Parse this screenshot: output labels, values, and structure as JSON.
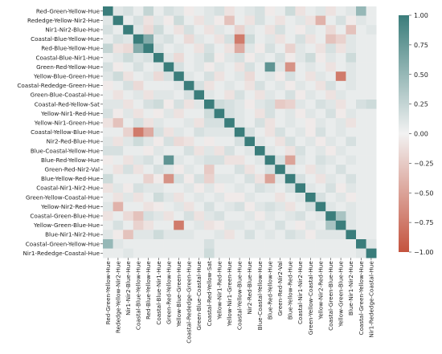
{
  "chart_data": {
    "type": "heatmap",
    "title": "",
    "xlabel": "",
    "ylabel": "",
    "labels": [
      "Red-Green-Yellow-Hue",
      "Rededge-Yellow-Nir2-Hue",
      "Nir1-Nir2-Blue-Hue",
      "Coastal-Blue-Yellow-Hue",
      "Red-Blue-Yellow-Hue",
      "Coastal-Blue-Nir1-Hue",
      "Green-Red-Yellow-Hue",
      "Yellow-Blue-Green-Hue",
      "Coastal-Rededge-Green-Hue",
      "Green-Blue-Coastal-Hue",
      "Coastal-Red-Yellow-Sat",
      "Yellow-Nir1-Red-Hue",
      "Yellow-Nir1-Green-Hue",
      "Coastal-Yellow-Blue-Hue",
      "Nir2-Red-Blue-Hue",
      "Blue-Coastal-Yellow-Hue",
      "Blue-Red-Yellow-Hue",
      "Green-Red-Nir2-Val",
      "Blue-Yellow-Red-Hue",
      "Coastal-Nir1-Nir2-Hue",
      "Green-Yellow-Coastal-Hue",
      "Yellow-Nir2-Red-Hue",
      "Coastal-Green-Blue-Hue",
      "Yellow-Green-Blue-Hue",
      "Blue-Nir1-Nir2-Hue",
      "Coastal-Green-Yellow-Hue",
      "Nir1-Rededge-Coastal-Hue"
    ],
    "values": [
      [
        1.0,
        0.1,
        0.15,
        0.05,
        0.25,
        0.05,
        0.15,
        0.1,
        -0.05,
        0.05,
        0.1,
        0.15,
        -0.1,
        0.05,
        0.1,
        0.15,
        -0.05,
        0.05,
        0.2,
        -0.1,
        0.05,
        0.1,
        -0.1,
        0.05,
        0.1,
        0.5,
        0.05
      ],
      [
        0.1,
        1.0,
        0.05,
        0.15,
        -0.1,
        0.1,
        -0.05,
        0.2,
        0.05,
        -0.1,
        0.1,
        -0.05,
        -0.3,
        0.05,
        -0.1,
        0.15,
        0.05,
        -0.1,
        0.05,
        0.1,
        -0.1,
        -0.4,
        0.05,
        0.15,
        -0.05,
        0.1,
        0.05
      ],
      [
        0.15,
        0.05,
        1.0,
        0.1,
        -0.15,
        0.2,
        0.05,
        -0.1,
        0.15,
        0.05,
        -0.1,
        0.1,
        0.05,
        -0.2,
        0.1,
        0.05,
        -0.1,
        0.15,
        0.05,
        -0.05,
        0.1,
        0.05,
        -0.15,
        0.05,
        -0.3,
        0.05,
        0.1
      ],
      [
        0.05,
        0.15,
        0.1,
        1.0,
        0.6,
        0.1,
        0.15,
        0.05,
        -0.15,
        0.1,
        0.05,
        -0.1,
        0.15,
        -0.75,
        0.2,
        0.05,
        0.1,
        -0.1,
        0.05,
        0.15,
        -0.1,
        0.05,
        -0.3,
        -0.2,
        0.1,
        0.05,
        0.05
      ],
      [
        0.25,
        -0.1,
        -0.15,
        0.6,
        1.0,
        0.15,
        0.05,
        0.1,
        0.05,
        -0.1,
        0.15,
        0.05,
        -0.1,
        -0.45,
        0.1,
        -0.05,
        0.15,
        0.05,
        -0.2,
        0.1,
        0.05,
        -0.1,
        0.15,
        -0.1,
        0.1,
        0.05,
        0.05
      ],
      [
        0.05,
        0.1,
        0.2,
        0.1,
        0.15,
        1.0,
        0.1,
        -0.15,
        0.05,
        0.1,
        0.2,
        -0.05,
        0.1,
        0.15,
        -0.05,
        0.1,
        0.05,
        0.15,
        -0.05,
        0.1,
        0.2,
        -0.05,
        0.1,
        0.05,
        0.2,
        0.05,
        0.05
      ],
      [
        0.15,
        -0.05,
        0.05,
        0.15,
        0.05,
        0.1,
        1.0,
        0.15,
        0.05,
        0.1,
        -0.05,
        0.1,
        0.05,
        -0.1,
        0.15,
        0.05,
        0.8,
        0.1,
        -0.6,
        0.05,
        0.1,
        0.05,
        -0.1,
        0.05,
        0.1,
        0.05,
        0.05
      ],
      [
        0.1,
        0.2,
        -0.1,
        0.05,
        0.1,
        -0.15,
        0.15,
        1.0,
        0.1,
        0.05,
        0.15,
        -0.1,
        0.05,
        0.1,
        -0.15,
        0.05,
        0.1,
        -0.05,
        0.15,
        0.05,
        -0.1,
        0.1,
        0.05,
        -0.75,
        0.1,
        0.05,
        0.05
      ],
      [
        -0.05,
        0.05,
        0.15,
        -0.15,
        0.05,
        0.05,
        0.05,
        0.1,
        1.0,
        0.15,
        -0.1,
        0.05,
        0.1,
        0.05,
        -0.1,
        0.15,
        0.05,
        0.1,
        -0.05,
        0.1,
        0.05,
        -0.1,
        0.15,
        0.05,
        0.1,
        0.05,
        0.05
      ],
      [
        0.05,
        -0.1,
        0.05,
        0.1,
        -0.1,
        0.1,
        0.1,
        0.05,
        0.15,
        1.0,
        0.1,
        0.05,
        -0.1,
        0.15,
        0.05,
        -0.1,
        0.1,
        0.05,
        0.15,
        -0.05,
        0.1,
        0.05,
        -0.1,
        0.1,
        0.05,
        0.05,
        0.05
      ],
      [
        0.1,
        0.1,
        -0.1,
        0.05,
        0.15,
        0.2,
        -0.05,
        0.15,
        -0.1,
        0.1,
        1.0,
        0.2,
        0.15,
        0.1,
        -0.05,
        0.1,
        0.15,
        -0.25,
        -0.2,
        0.1,
        0.05,
        0.15,
        0.1,
        -0.1,
        0.05,
        0.15,
        0.2
      ],
      [
        0.15,
        -0.05,
        0.1,
        -0.1,
        0.05,
        -0.05,
        0.1,
        -0.1,
        0.05,
        0.05,
        0.2,
        1.0,
        0.15,
        0.1,
        0.05,
        -0.1,
        0.15,
        0.05,
        0.1,
        -0.05,
        0.1,
        0.05,
        0.15,
        -0.05,
        0.1,
        0.05,
        0.05
      ],
      [
        -0.1,
        -0.3,
        0.05,
        0.15,
        -0.1,
        0.1,
        0.05,
        0.05,
        0.1,
        -0.1,
        0.15,
        0.15,
        1.0,
        0.1,
        0.05,
        0.15,
        -0.1,
        0.05,
        0.1,
        0.05,
        -0.05,
        0.1,
        0.05,
        0.1,
        -0.1,
        0.05,
        0.05
      ],
      [
        0.05,
        0.05,
        -0.2,
        -0.75,
        -0.45,
        0.15,
        -0.1,
        0.1,
        0.05,
        0.15,
        0.1,
        0.1,
        0.1,
        1.0,
        0.15,
        0.05,
        -0.1,
        0.15,
        0.05,
        0.1,
        -0.05,
        0.15,
        0.05,
        0.1,
        0.05,
        0.05,
        0.05
      ],
      [
        0.1,
        -0.1,
        0.1,
        0.2,
        0.1,
        -0.05,
        0.15,
        -0.15,
        -0.1,
        0.05,
        -0.05,
        0.05,
        0.05,
        0.15,
        1.0,
        0.1,
        0.05,
        -0.1,
        0.15,
        0.05,
        0.1,
        -0.05,
        0.1,
        0.05,
        0.15,
        0.05,
        0.05
      ],
      [
        0.15,
        0.15,
        0.05,
        0.05,
        -0.05,
        0.1,
        0.05,
        0.05,
        0.15,
        -0.1,
        0.1,
        -0.1,
        0.15,
        0.05,
        0.1,
        1.0,
        0.1,
        0.05,
        -0.1,
        0.15,
        0.05,
        0.1,
        -0.05,
        0.1,
        0.05,
        0.05,
        0.05
      ],
      [
        -0.05,
        0.05,
        -0.1,
        0.1,
        0.15,
        0.05,
        0.8,
        0.1,
        0.05,
        0.1,
        0.15,
        0.15,
        -0.1,
        -0.1,
        0.05,
        0.1,
        1.0,
        0.15,
        -0.5,
        0.1,
        0.05,
        0.15,
        0.1,
        0.05,
        0.1,
        0.05,
        0.05
      ],
      [
        0.05,
        -0.1,
        0.15,
        -0.1,
        0.05,
        0.15,
        0.1,
        -0.05,
        0.1,
        0.05,
        -0.25,
        0.05,
        0.05,
        0.15,
        -0.1,
        0.05,
        0.15,
        1.0,
        0.1,
        0.05,
        -0.1,
        0.1,
        0.05,
        0.15,
        0.05,
        0.05,
        0.05
      ],
      [
        0.2,
        0.05,
        0.05,
        0.05,
        -0.2,
        -0.05,
        -0.6,
        0.15,
        -0.05,
        0.15,
        -0.2,
        0.1,
        0.1,
        0.05,
        0.15,
        -0.1,
        -0.5,
        0.1,
        1.0,
        0.15,
        0.05,
        -0.1,
        0.1,
        0.05,
        0.15,
        0.05,
        0.05
      ],
      [
        -0.1,
        0.1,
        -0.05,
        0.15,
        0.1,
        0.1,
        0.05,
        0.05,
        0.1,
        -0.05,
        0.1,
        -0.05,
        0.05,
        0.1,
        0.05,
        0.15,
        0.1,
        0.05,
        0.15,
        1.0,
        0.1,
        0.05,
        0.15,
        -0.05,
        0.1,
        0.05,
        0.05
      ],
      [
        0.05,
        -0.1,
        0.1,
        -0.1,
        0.05,
        0.2,
        0.1,
        -0.1,
        0.05,
        0.1,
        0.05,
        0.1,
        -0.05,
        -0.05,
        0.1,
        0.05,
        0.05,
        -0.1,
        0.05,
        0.1,
        1.0,
        0.15,
        0.05,
        0.1,
        -0.05,
        0.05,
        0.05
      ],
      [
        0.1,
        -0.4,
        0.05,
        0.05,
        -0.1,
        -0.05,
        0.05,
        0.1,
        -0.1,
        0.05,
        0.15,
        0.05,
        0.1,
        0.15,
        -0.05,
        0.1,
        0.15,
        0.1,
        -0.1,
        0.05,
        0.15,
        1.0,
        0.1,
        0.05,
        0.1,
        0.05,
        0.05
      ],
      [
        -0.1,
        0.05,
        -0.15,
        -0.3,
        0.15,
        0.1,
        -0.1,
        0.05,
        0.15,
        -0.1,
        0.1,
        0.15,
        0.05,
        0.05,
        0.1,
        -0.05,
        0.1,
        0.05,
        0.1,
        0.15,
        0.05,
        0.1,
        1.0,
        0.4,
        0.1,
        0.05,
        0.05
      ],
      [
        0.05,
        0.15,
        0.05,
        -0.2,
        -0.1,
        0.05,
        0.05,
        -0.75,
        0.05,
        0.1,
        -0.1,
        -0.05,
        0.1,
        0.1,
        0.05,
        0.1,
        0.05,
        0.15,
        0.05,
        -0.05,
        0.1,
        0.05,
        0.4,
        1.0,
        0.1,
        0.05,
        0.05
      ],
      [
        0.1,
        -0.05,
        -0.3,
        0.1,
        0.1,
        0.2,
        0.1,
        0.1,
        0.1,
        0.05,
        0.05,
        0.1,
        -0.1,
        0.05,
        0.15,
        0.05,
        0.1,
        0.05,
        0.15,
        0.1,
        -0.05,
        0.1,
        0.1,
        0.1,
        1.0,
        0.05,
        0.05
      ],
      [
        0.5,
        0.1,
        0.05,
        0.05,
        0.05,
        0.05,
        0.05,
        0.05,
        0.05,
        0.05,
        0.15,
        0.05,
        0.05,
        0.05,
        0.05,
        0.05,
        0.05,
        0.05,
        0.05,
        0.05,
        0.05,
        0.05,
        0.05,
        0.05,
        0.05,
        1.0,
        0.1
      ],
      [
        0.05,
        0.05,
        0.1,
        0.05,
        0.05,
        0.05,
        0.05,
        0.05,
        0.05,
        0.05,
        0.2,
        0.05,
        0.05,
        0.05,
        0.05,
        0.05,
        0.05,
        0.05,
        0.05,
        0.05,
        0.05,
        0.05,
        0.05,
        0.05,
        0.05,
        0.1,
        1.0
      ]
    ],
    "zlim": [
      -1.0,
      1.0
    ],
    "colorbar": {
      "ticks": [
        1.0,
        0.75,
        0.5,
        0.25,
        0.0,
        -0.25,
        -0.5,
        -0.75,
        -1.0
      ],
      "tick_labels": [
        "1.00",
        "0.75",
        "0.50",
        "0.25",
        "0.00",
        "−0.25",
        "−0.50",
        "−0.75",
        "−1.00"
      ]
    },
    "colors": {
      "negative": "#c4533e",
      "neutral": "#f2f2f2",
      "positive": "#3a7d7b"
    }
  }
}
